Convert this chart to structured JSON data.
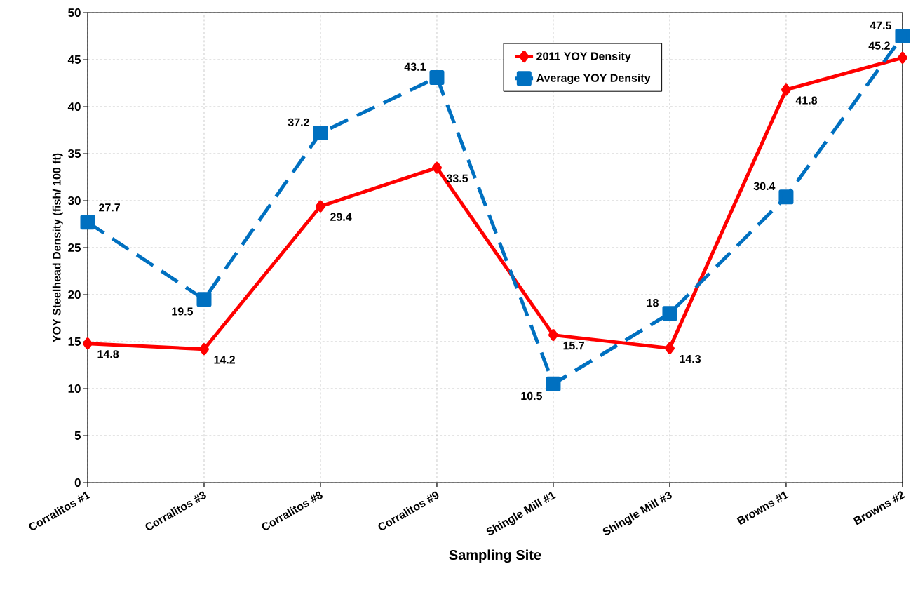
{
  "chart_data": {
    "type": "line",
    "xlabel": "Sampling Site",
    "ylabel": "YOY Steelhead Density (fish/ 100 ft)",
    "categories": [
      "Corralitos #1",
      "Corralitos #3",
      "Corralitos #8",
      "Corralitos #9",
      "Shingle Mill #1",
      "Shingle Mill #3",
      "Browns #1",
      "Browns #2"
    ],
    "series": [
      {
        "name": "2011 YOY Density",
        "color": "#ff0000",
        "marker": "diamond",
        "line_style": "solid",
        "values": [
          14.8,
          14.2,
          29.4,
          33.5,
          15.7,
          14.3,
          41.8,
          45.2
        ]
      },
      {
        "name": "Average YOY Density",
        "color": "#0070c0",
        "marker": "square",
        "line_style": "dashed",
        "values": [
          27.7,
          19.5,
          37.2,
          43.1,
          10.5,
          18,
          30.4,
          47.5
        ]
      }
    ],
    "ylim": [
      0,
      50
    ],
    "yticks": [
      0,
      5,
      10,
      15,
      20,
      25,
      30,
      35,
      40,
      45,
      50
    ],
    "grid": true,
    "legend": "top right",
    "data_labels": true
  }
}
